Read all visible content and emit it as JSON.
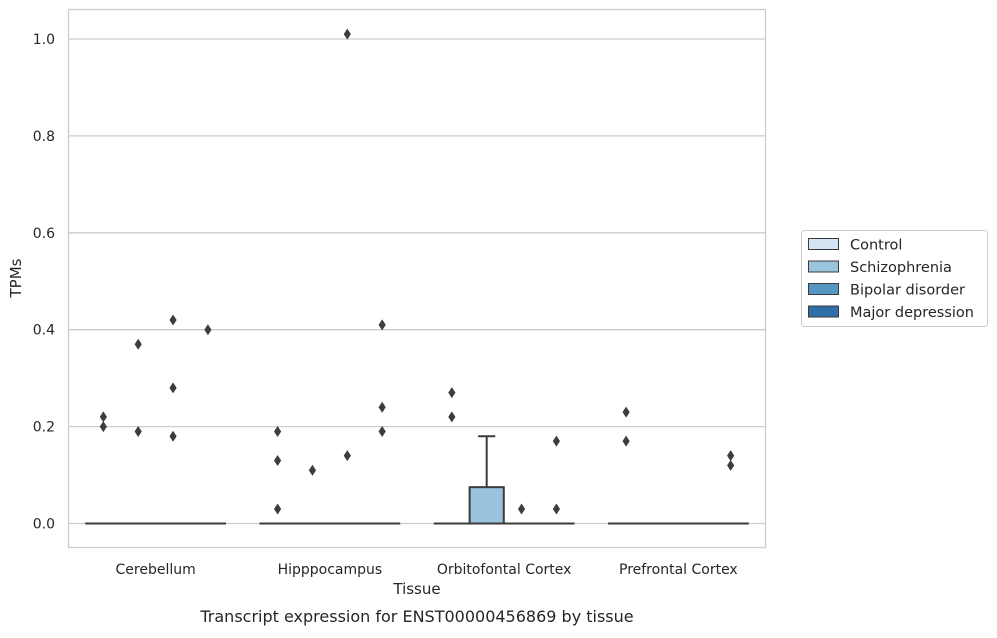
{
  "chart_data": {
    "type": "box",
    "title": "",
    "caption": "Transcript expression for ENST00000456869 by tissue",
    "xlabel": "Tissue",
    "ylabel": "TPMs",
    "ylim": [
      -0.05,
      1.06
    ],
    "yticks": [
      0.0,
      0.2,
      0.4,
      0.6,
      0.8,
      1.0
    ],
    "ytick_labels": [
      "0.0",
      "0.2",
      "0.4",
      "0.6",
      "0.8",
      "1.0"
    ],
    "categories": [
      "Cerebellum",
      "Hipppocampus",
      "Orbitofontal Cortex",
      "Prefrontal Cortex"
    ],
    "grid": "horizontal",
    "legend_position": "right",
    "series": [
      {
        "name": "Control",
        "color": "#d4e4f2",
        "boxes": [
          {
            "q1": 0,
            "median": 0,
            "q3": 0,
            "whisker_low": 0,
            "whisker_high": 0,
            "outliers": [
              0.22,
              0.2
            ]
          },
          {
            "q1": 0,
            "median": 0,
            "q3": 0,
            "whisker_low": 0,
            "whisker_high": 0,
            "outliers": [
              0.19,
              0.13,
              0.03
            ]
          },
          {
            "q1": 0,
            "median": 0,
            "q3": 0,
            "whisker_low": 0,
            "whisker_high": 0,
            "outliers": [
              0.27,
              0.22
            ]
          },
          {
            "q1": 0,
            "median": 0,
            "q3": 0,
            "whisker_low": 0,
            "whisker_high": 0,
            "outliers": [
              0.23,
              0.17
            ]
          }
        ]
      },
      {
        "name": "Schizophrenia",
        "color": "#9ac3dd",
        "boxes": [
          {
            "q1": 0,
            "median": 0,
            "q3": 0,
            "whisker_low": 0,
            "whisker_high": 0,
            "outliers": [
              0.37,
              0.19
            ]
          },
          {
            "q1": 0,
            "median": 0,
            "q3": 0,
            "whisker_low": 0,
            "whisker_high": 0,
            "outliers": [
              0.11
            ]
          },
          {
            "q1": 0,
            "median": 0,
            "q3": 0.075,
            "whisker_low": 0,
            "whisker_high": 0.18,
            "outliers": []
          },
          {
            "q1": 0,
            "median": 0,
            "q3": 0,
            "whisker_low": 0,
            "whisker_high": 0,
            "outliers": []
          }
        ]
      },
      {
        "name": "Bipolar disorder",
        "color": "#5596c3",
        "boxes": [
          {
            "q1": 0,
            "median": 0,
            "q3": 0,
            "whisker_low": 0,
            "whisker_high": 0,
            "outliers": [
              0.42,
              0.28,
              0.18
            ]
          },
          {
            "q1": 0,
            "median": 0,
            "q3": 0,
            "whisker_low": 0,
            "whisker_high": 0,
            "outliers": [
              1.01,
              0.14
            ]
          },
          {
            "q1": 0,
            "median": 0,
            "q3": 0,
            "whisker_low": 0,
            "whisker_high": 0,
            "outliers": [
              0.03
            ]
          },
          {
            "q1": 0,
            "median": 0,
            "q3": 0,
            "whisker_low": 0,
            "whisker_high": 0,
            "outliers": []
          }
        ]
      },
      {
        "name": "Major depression",
        "color": "#2f6ea8",
        "boxes": [
          {
            "q1": 0,
            "median": 0,
            "q3": 0,
            "whisker_low": 0,
            "whisker_high": 0,
            "outliers": [
              0.4
            ]
          },
          {
            "q1": 0,
            "median": 0,
            "q3": 0,
            "whisker_low": 0,
            "whisker_high": 0,
            "outliers": [
              0.41,
              0.24,
              0.19
            ]
          },
          {
            "q1": 0,
            "median": 0,
            "q3": 0,
            "whisker_low": 0,
            "whisker_high": 0,
            "outliers": [
              0.17,
              0.03
            ]
          },
          {
            "q1": 0,
            "median": 0,
            "q3": 0,
            "whisker_low": 0,
            "whisker_high": 0,
            "outliers": [
              0.14,
              0.12
            ]
          }
        ]
      }
    ]
  }
}
